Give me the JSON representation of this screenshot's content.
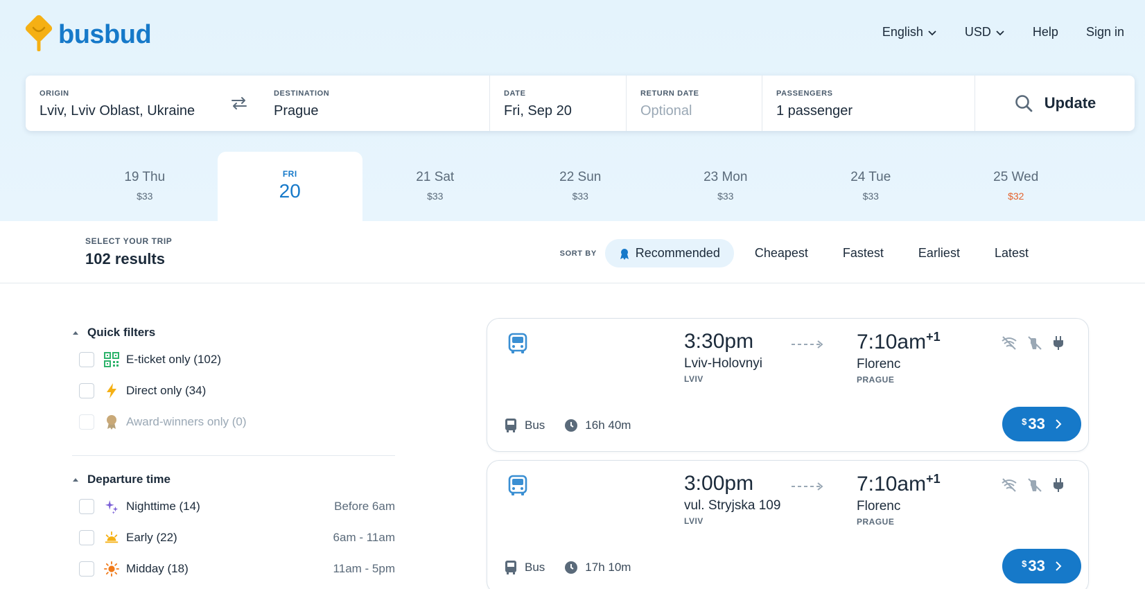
{
  "brand": {
    "name": "busbud",
    "color": "#1679c9",
    "mark_color": "#f5b014"
  },
  "nav": {
    "language": "English",
    "currency": "USD",
    "help": "Help",
    "sign_in": "Sign in"
  },
  "search": {
    "origin": {
      "label": "ORIGIN",
      "value": "Lviv, Lviv Oblast, Ukraine"
    },
    "destination": {
      "label": "DESTINATION",
      "value": "Prague"
    },
    "date": {
      "label": "DATE",
      "value": "Fri, Sep 20"
    },
    "return_date": {
      "label": "RETURN DATE",
      "placeholder": "Optional"
    },
    "passengers": {
      "label": "PASSENGERS",
      "value": "1 passenger"
    },
    "update_label": "Update"
  },
  "date_tabs": [
    {
      "day": "19 Thu",
      "price": "$33"
    },
    {
      "weekday": "FRI",
      "daynum": "20",
      "active": true
    },
    {
      "day": "21 Sat",
      "price": "$33"
    },
    {
      "day": "22 Sun",
      "price": "$33"
    },
    {
      "day": "23 Mon",
      "price": "$33"
    },
    {
      "day": "24 Tue",
      "price": "$33"
    },
    {
      "day": "25 Wed",
      "price": "$32",
      "lowest": true
    }
  ],
  "results": {
    "label": "SELECT YOUR TRIP",
    "count": "102 results"
  },
  "sort": {
    "label": "SORT BY",
    "options": [
      "Recommended",
      "Cheapest",
      "Fastest",
      "Earliest",
      "Latest"
    ],
    "active": "Recommended"
  },
  "filters": {
    "quick": {
      "title": "Quick filters",
      "items": [
        {
          "label": "E-ticket only (102)",
          "icon": "qr-code-icon"
        },
        {
          "label": "Direct only (34)",
          "icon": "lightning-icon"
        },
        {
          "label": "Award-winners only (0)",
          "icon": "award-medal-icon",
          "disabled": true
        }
      ]
    },
    "departure": {
      "title": "Departure time",
      "items": [
        {
          "label": "Nighttime (14)",
          "range": "Before 6am",
          "icon": "sparkles-icon"
        },
        {
          "label": "Early (22)",
          "range": "6am - 11am",
          "icon": "sunrise-icon"
        },
        {
          "label": "Midday (18)",
          "range": "11am - 5pm",
          "icon": "sun-icon"
        }
      ]
    }
  },
  "trips": [
    {
      "dep_time": "3:30pm",
      "dep_station": "Lviv-Holovnyi",
      "dep_city": "LVIV",
      "arr_time": "7:10am",
      "arr_day_offset": "+1",
      "arr_station": "Florenc",
      "arr_city": "PRAGUE",
      "mode": "Bus",
      "duration": "16h 40m",
      "price_currency": "$",
      "price": "33"
    },
    {
      "dep_time": "3:00pm",
      "dep_station": "vul. Stryjska 109",
      "dep_city": "LVIV",
      "arr_time": "7:10am",
      "arr_day_offset": "+1",
      "arr_station": "Florenc",
      "arr_city": "PRAGUE",
      "mode": "Bus",
      "duration": "17h 10m",
      "price_currency": "$",
      "price": "33"
    }
  ]
}
